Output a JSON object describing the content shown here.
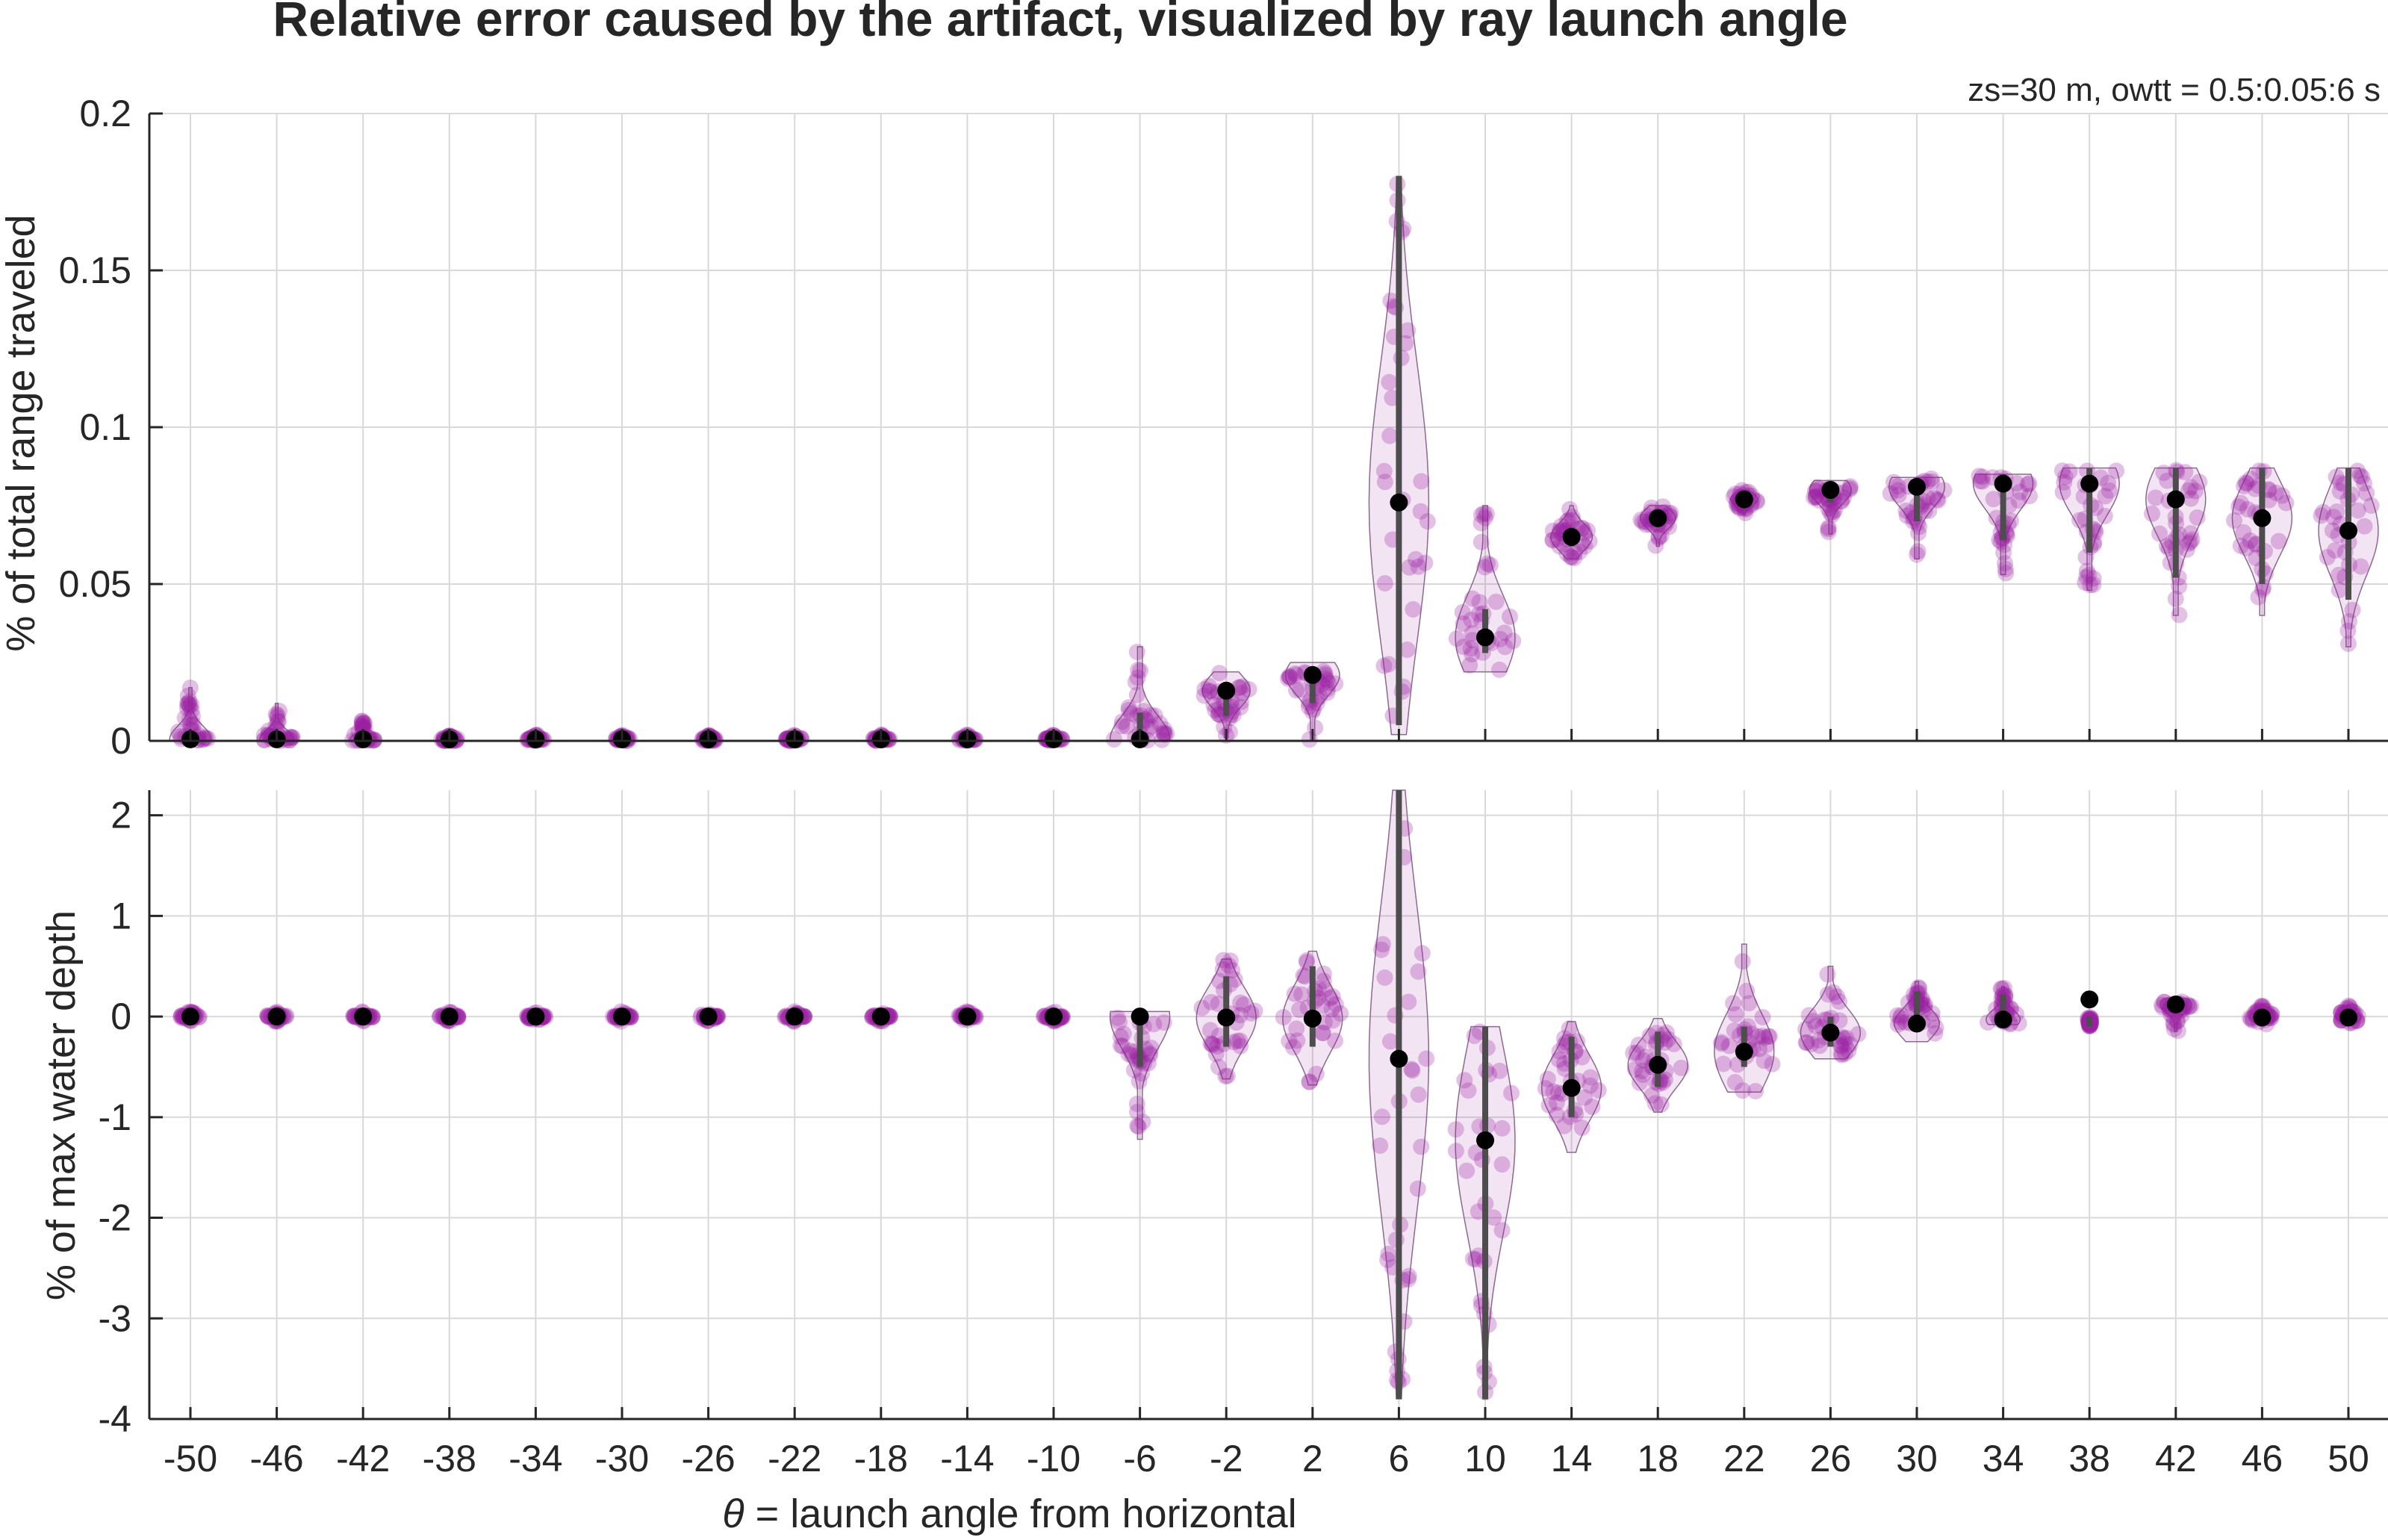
{
  "title": "Relative error caused by the artifact, visualized by ray launch angle",
  "subtitle": "zs=30 m, owtt = 0.5:0.05:6 s",
  "xlabel_symbol": "θ",
  "xlabel_rest": " = launch angle from horizontal",
  "colors": {
    "points": "#9B1FA3",
    "median": "#000000",
    "iqr": "#4D4D4D",
    "grid": "#D9D9D9",
    "axis": "#262626"
  },
  "chart_data": [
    {
      "type": "violin",
      "ylabel": "% of total range traveled",
      "ylim": [
        0,
        0.2
      ],
      "yticks": [
        0,
        0.05,
        0.1,
        0.15,
        0.2
      ],
      "ytick_labels": [
        "0",
        "0.05",
        "0.1",
        "0.15",
        "0.2"
      ],
      "categories": [
        -50,
        -46,
        -42,
        -38,
        -34,
        -30,
        -26,
        -22,
        -18,
        -14,
        -10,
        -6,
        -2,
        2,
        6,
        10,
        14,
        18,
        22,
        26,
        30,
        34,
        38,
        42,
        46,
        50
      ],
      "x_tick_labels": [
        "-50",
        "-46",
        "-42",
        "-38",
        "-34",
        "-30",
        "-26",
        "-22",
        "-18",
        "-14",
        "-10",
        "-6",
        "-2",
        "2",
        "6",
        "10",
        "14",
        "18",
        "22",
        "26",
        "30",
        "34",
        "38",
        "42",
        "46",
        "50"
      ],
      "medians": [
        0.0005,
        0.0005,
        0.0005,
        0.0005,
        0.0005,
        0.0005,
        0.0005,
        0.0005,
        0.0005,
        0.0005,
        0.0005,
        0.0005,
        0.016,
        0.021,
        0.076,
        0.033,
        0.065,
        0.071,
        0.077,
        0.08,
        0.081,
        0.082,
        0.082,
        0.077,
        0.071,
        0.067
      ],
      "min": [
        0,
        0,
        0,
        0,
        0,
        0,
        0,
        0,
        0,
        0,
        0,
        0,
        0.001,
        0.0,
        0.002,
        0.022,
        0.058,
        0.062,
        0.072,
        0.066,
        0.058,
        0.053,
        0.048,
        0.04,
        0.04,
        0.03
      ],
      "max": [
        0.017,
        0.012,
        0.007,
        0.002,
        0.002,
        0.002,
        0.002,
        0.002,
        0.002,
        0.002,
        0.002,
        0.03,
        0.022,
        0.025,
        0.18,
        0.075,
        0.075,
        0.075,
        0.08,
        0.083,
        0.084,
        0.085,
        0.087,
        0.087,
        0.087,
        0.087
      ],
      "q1": [
        0,
        0,
        0,
        0,
        0,
        0,
        0,
        0,
        0,
        0,
        0,
        0,
        0.008,
        0.012,
        0.005,
        0.028,
        0.062,
        0.068,
        0.074,
        0.076,
        0.07,
        0.064,
        0.06,
        0.052,
        0.05,
        0.045
      ],
      "q3": [
        0.002,
        0.002,
        0.001,
        0.001,
        0.001,
        0.001,
        0.001,
        0.001,
        0.001,
        0.001,
        0.001,
        0.009,
        0.018,
        0.022,
        0.18,
        0.042,
        0.068,
        0.073,
        0.079,
        0.082,
        0.083,
        0.085,
        0.087,
        0.087,
        0.087,
        0.087
      ]
    },
    {
      "type": "violin",
      "ylabel": "% of max water depth",
      "ylim": [
        -4,
        2.25
      ],
      "yticks": [
        -4,
        -3,
        -2,
        -1,
        0,
        1,
        2
      ],
      "ytick_labels": [
        "-4",
        "-3",
        "-2",
        "-1",
        "0",
        "1",
        "2"
      ],
      "categories": [
        -50,
        -46,
        -42,
        -38,
        -34,
        -30,
        -26,
        -22,
        -18,
        -14,
        -10,
        -6,
        -2,
        2,
        6,
        10,
        14,
        18,
        22,
        26,
        30,
        34,
        38,
        42,
        46,
        50
      ],
      "x_tick_labels": [
        "-50",
        "-46",
        "-42",
        "-38",
        "-34",
        "-30",
        "-26",
        "-22",
        "-18",
        "-14",
        "-10",
        "-6",
        "-2",
        "2",
        "6",
        "10",
        "14",
        "18",
        "22",
        "26",
        "30",
        "34",
        "38",
        "42",
        "46",
        "50"
      ],
      "medians": [
        0,
        0,
        0,
        0,
        0,
        0,
        0,
        0,
        0,
        0,
        0,
        0,
        -0.01,
        -0.02,
        -0.42,
        -1.23,
        -0.71,
        -0.48,
        -0.35,
        -0.16,
        -0.07,
        -0.03,
        0.17,
        0.12,
        -0.01,
        -0.01
      ],
      "min": [
        -0.05,
        -0.05,
        -0.05,
        -0.05,
        -0.05,
        -0.05,
        -0.05,
        -0.05,
        -0.05,
        -0.05,
        -0.05,
        -1.22,
        -0.62,
        -0.68,
        -3.8,
        -3.8,
        -1.35,
        -0.95,
        -0.75,
        -0.42,
        -0.25,
        -0.08,
        -0.1,
        -0.15,
        -0.08,
        -0.08
      ],
      "max": [
        0.05,
        0.05,
        0.05,
        0.05,
        0.05,
        0.05,
        0.05,
        0.05,
        0.05,
        0.05,
        0.05,
        0.05,
        0.57,
        0.65,
        2.25,
        -0.1,
        -0.05,
        -0.02,
        0.72,
        0.5,
        0.35,
        0.3,
        0.0,
        0.18,
        0.12,
        0.12
      ],
      "q1": [
        -0.01,
        -0.01,
        -0.01,
        -0.01,
        -0.01,
        -0.01,
        -0.01,
        -0.01,
        -0.01,
        -0.01,
        -0.01,
        -0.5,
        -0.3,
        -0.3,
        -3.8,
        -3.8,
        -1.0,
        -0.7,
        -0.5,
        -0.3,
        -0.15,
        -0.08,
        -0.1,
        0.05,
        -0.06,
        -0.06
      ],
      "q3": [
        0.01,
        0.01,
        0.01,
        0.01,
        0.01,
        0.01,
        0.01,
        0.01,
        0.01,
        0.01,
        0.01,
        0.0,
        0.4,
        0.5,
        2.25,
        -0.1,
        -0.2,
        -0.15,
        -0.1,
        0.0,
        0.25,
        0.22,
        0.0,
        0.15,
        0.08,
        0.08
      ]
    }
  ]
}
